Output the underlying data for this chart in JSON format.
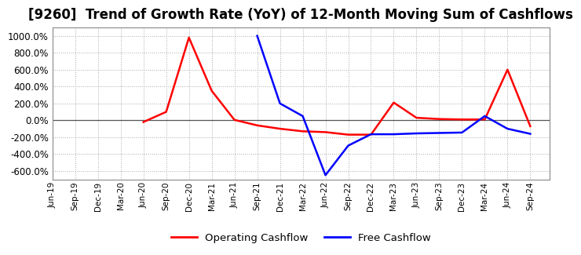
{
  "title": "[9260]  Trend of Growth Rate (YoY) of 12-Month Moving Sum of Cashflows",
  "title_fontsize": 12,
  "background_color": "#ffffff",
  "plot_bg_color": "#ffffff",
  "grid_color": "#aaaaaa",
  "ylim": [
    -700,
    1100
  ],
  "yticks": [
    -600,
    -400,
    -200,
    0,
    200,
    400,
    600,
    800,
    1000
  ],
  "x_labels": [
    "Jun-19",
    "Sep-19",
    "Dec-19",
    "Mar-20",
    "Jun-20",
    "Sep-20",
    "Dec-20",
    "Mar-21",
    "Jun-21",
    "Sep-21",
    "Dec-21",
    "Mar-22",
    "Jun-22",
    "Sep-22",
    "Dec-22",
    "Mar-23",
    "Jun-23",
    "Sep-23",
    "Dec-23",
    "Mar-24",
    "Jun-24",
    "Sep-24"
  ],
  "operating_cashflow": [
    null,
    null,
    null,
    null,
    -20,
    100,
    980,
    350,
    5,
    -60,
    -100,
    -130,
    -140,
    -170,
    -170,
    210,
    30,
    15,
    10,
    10,
    600,
    -70
  ],
  "free_cashflow": [
    null,
    null,
    null,
    null,
    null,
    null,
    null,
    null,
    null,
    1000,
    200,
    50,
    -650,
    -300,
    -165,
    -165,
    -155,
    -150,
    -145,
    50,
    -100,
    -160
  ],
  "operating_color": "#ff0000",
  "free_color": "#0000ff",
  "legend_labels": [
    "Operating Cashflow",
    "Free Cashflow"
  ],
  "line_width": 1.8
}
